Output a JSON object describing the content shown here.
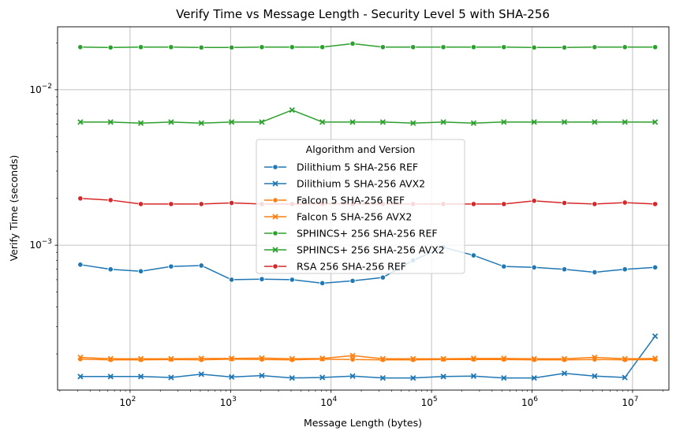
{
  "chart_data": {
    "type": "line",
    "title": "Verify Time vs Message Length - Security Level 5 with SHA-256",
    "xlabel": "Message Length (bytes)",
    "ylabel": "Verify Time (seconds)",
    "xscale": "log",
    "yscale": "log",
    "xlim": [
      19,
      23000000
    ],
    "ylim": [
      0.000117,
      0.0254
    ],
    "grid": true,
    "x_ticks": [
      {
        "value": 100,
        "base": "10",
        "exp": "2"
      },
      {
        "value": 1000,
        "base": "10",
        "exp": "3"
      },
      {
        "value": 10000,
        "base": "10",
        "exp": "4"
      },
      {
        "value": 100000,
        "base": "10",
        "exp": "5"
      },
      {
        "value": 1000000,
        "base": "10",
        "exp": "6"
      },
      {
        "value": 10000000,
        "base": "10",
        "exp": "7"
      }
    ],
    "y_ticks": [
      {
        "value": 0.001,
        "base": "10",
        "exp": "−3"
      },
      {
        "value": 0.01,
        "base": "10",
        "exp": "−2"
      }
    ],
    "legend": {
      "title": "Algorithm and Version",
      "placement": "center"
    },
    "x": [
      32,
      64,
      128,
      256,
      512,
      1024,
      2048,
      4096,
      8192,
      16384,
      32768,
      65536,
      131072,
      262144,
      524288,
      1048576,
      2097152,
      4194304,
      8388608,
      16777216
    ],
    "series": [
      {
        "name": "Dilithium 5 SHA-256 REF",
        "color": "#1f77b4",
        "marker": "circle",
        "values": [
          0.00075,
          0.0007,
          0.00068,
          0.00073,
          0.00074,
          0.0006,
          0.000605,
          0.0006,
          0.00057,
          0.00059,
          0.00062,
          0.0008,
          0.00097,
          0.00086,
          0.00073,
          0.00072,
          0.0007,
          0.00067,
          0.0007,
          0.00072
        ]
      },
      {
        "name": "Dilithium 5 SHA-256 AVX2",
        "color": "#1f77b4",
        "marker": "x",
        "values": [
          0.000143,
          0.000143,
          0.000143,
          0.000141,
          0.000148,
          0.000142,
          0.000145,
          0.00014,
          0.000141,
          0.000144,
          0.00014,
          0.00014,
          0.000143,
          0.000144,
          0.00014,
          0.00014,
          0.00015,
          0.000144,
          0.000141,
          0.00026
        ]
      },
      {
        "name": "Falcon 5 SHA-256 REF",
        "color": "#ff7f0e",
        "marker": "circle",
        "values": [
          0.000185,
          0.000183,
          0.000183,
          0.000184,
          0.000183,
          0.000185,
          0.000184,
          0.000183,
          0.000185,
          0.000184,
          0.000183,
          0.000183,
          0.000184,
          0.000184,
          0.000184,
          0.000183,
          0.000183,
          0.000184,
          0.000183,
          0.000184
        ]
      },
      {
        "name": "Falcon 5 SHA-256 AVX2",
        "color": "#ff7f0e",
        "marker": "x",
        "values": [
          0.00019,
          0.000186,
          0.000186,
          0.000186,
          0.000187,
          0.000187,
          0.000188,
          0.000186,
          0.000187,
          0.000195,
          0.000186,
          0.000186,
          0.000186,
          0.000187,
          0.000187,
          0.000186,
          0.000186,
          0.00019,
          0.000186,
          0.000187
        ]
      },
      {
        "name": "SPHINCS+ 256 SHA-256 REF",
        "color": "#2ca02c",
        "marker": "circle",
        "values": [
          0.0188,
          0.0187,
          0.0188,
          0.0188,
          0.0187,
          0.0187,
          0.0188,
          0.0188,
          0.0188,
          0.0198,
          0.0188,
          0.0188,
          0.0188,
          0.0188,
          0.0188,
          0.0187,
          0.0187,
          0.0188,
          0.0188,
          0.0188
        ]
      },
      {
        "name": "SPHINCS+ 256 SHA-256 AVX2",
        "color": "#2ca02c",
        "marker": "x",
        "values": [
          0.0062,
          0.0062,
          0.0061,
          0.0062,
          0.0061,
          0.0062,
          0.0062,
          0.0074,
          0.0062,
          0.0062,
          0.0062,
          0.0061,
          0.0062,
          0.0061,
          0.0062,
          0.0062,
          0.0062,
          0.0062,
          0.0062,
          0.0062
        ]
      },
      {
        "name": "RSA 256 SHA-256 REF",
        "color": "#d62728",
        "marker": "circle",
        "values": [
          0.002,
          0.00195,
          0.00184,
          0.00184,
          0.00184,
          0.00187,
          0.00184,
          0.00184,
          0.00185,
          0.00184,
          0.00184,
          0.00184,
          0.00184,
          0.00184,
          0.00184,
          0.00193,
          0.00187,
          0.00184,
          0.00188,
          0.00184
        ]
      }
    ]
  }
}
